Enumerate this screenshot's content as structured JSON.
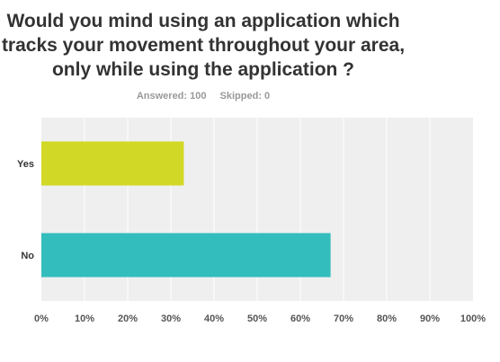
{
  "question": {
    "title": "Would you mind using an application which tracks your movement throughout your area, only while using the application ?"
  },
  "stats": {
    "answered": "Answered: 100",
    "skipped": "Skipped: 0"
  },
  "colors": {
    "plot_background": "#efefef",
    "gridline": "#ffffff",
    "yes_bar": "#d1d826",
    "no_bar": "#33bdbd"
  },
  "chart_data": {
    "type": "bar",
    "orientation": "horizontal",
    "categories": [
      "Yes",
      "No"
    ],
    "values": [
      33,
      67
    ],
    "unit": "%",
    "xlim": [
      0,
      100
    ],
    "xticks": [
      "0%",
      "10%",
      "20%",
      "30%",
      "40%",
      "50%",
      "60%",
      "70%",
      "80%",
      "90%",
      "100%"
    ],
    "grid": true
  }
}
